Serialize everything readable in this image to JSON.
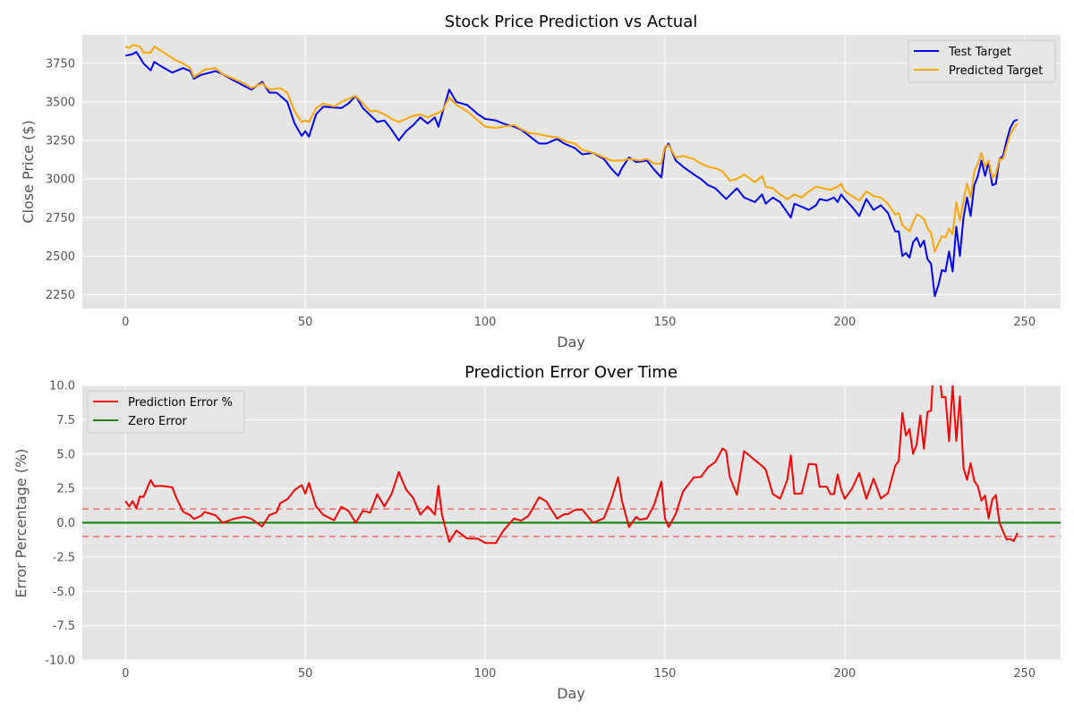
{
  "chart_data": [
    {
      "type": "line",
      "title": "Stock Price Prediction vs Actual",
      "xlabel": "Day",
      "ylabel": "Close Price ($)",
      "xlim": [
        -12,
        260
      ],
      "ylim": [
        2160,
        3935
      ],
      "xticks": [
        0,
        50,
        100,
        150,
        200,
        250
      ],
      "yticks": [
        2250,
        2500,
        2750,
        3000,
        3250,
        3500,
        3750
      ],
      "grid": true,
      "legend": "top-right",
      "anchors": {
        "Test Target": [
          [
            0,
            3800
          ],
          [
            2,
            3810
          ],
          [
            3,
            3825
          ],
          [
            5,
            3750
          ],
          [
            7,
            3705
          ],
          [
            8,
            3760
          ],
          [
            10,
            3730
          ],
          [
            13,
            3690
          ],
          [
            16,
            3720
          ],
          [
            18,
            3700
          ],
          [
            19,
            3650
          ],
          [
            21,
            3675
          ],
          [
            25,
            3700
          ],
          [
            27,
            3680
          ],
          [
            30,
            3640
          ],
          [
            35,
            3580
          ],
          [
            38,
            3630
          ],
          [
            40,
            3560
          ],
          [
            42,
            3560
          ],
          [
            45,
            3500
          ],
          [
            47,
            3360
          ],
          [
            49,
            3280
          ],
          [
            50,
            3310
          ],
          [
            51,
            3275
          ],
          [
            53,
            3420
          ],
          [
            55,
            3470
          ],
          [
            60,
            3460
          ],
          [
            62,
            3490
          ],
          [
            64,
            3540
          ],
          [
            66,
            3460
          ],
          [
            70,
            3370
          ],
          [
            72,
            3380
          ],
          [
            74,
            3320
          ],
          [
            76,
            3250
          ],
          [
            78,
            3310
          ],
          [
            80,
            3350
          ],
          [
            82,
            3400
          ],
          [
            84,
            3360
          ],
          [
            86,
            3400
          ],
          [
            87,
            3340
          ],
          [
            88,
            3420
          ],
          [
            90,
            3580
          ],
          [
            92,
            3500
          ],
          [
            95,
            3480
          ],
          [
            98,
            3420
          ],
          [
            100,
            3390
          ],
          [
            103,
            3380
          ],
          [
            105,
            3360
          ],
          [
            108,
            3340
          ],
          [
            110,
            3320
          ],
          [
            115,
            3230
          ],
          [
            117,
            3230
          ],
          [
            120,
            3260
          ],
          [
            122,
            3230
          ],
          [
            125,
            3200
          ],
          [
            127,
            3160
          ],
          [
            130,
            3170
          ],
          [
            133,
            3130
          ],
          [
            135,
            3070
          ],
          [
            137,
            3020
          ],
          [
            138,
            3070
          ],
          [
            140,
            3140
          ],
          [
            142,
            3110
          ],
          [
            145,
            3120
          ],
          [
            147,
            3060
          ],
          [
            149,
            3010
          ],
          [
            150,
            3200
          ],
          [
            151,
            3230
          ],
          [
            153,
            3120
          ],
          [
            155,
            3080
          ],
          [
            158,
            3030
          ],
          [
            160,
            3000
          ],
          [
            162,
            2960
          ],
          [
            164,
            2940
          ],
          [
            167,
            2870
          ],
          [
            170,
            2940
          ],
          [
            172,
            2880
          ],
          [
            175,
            2850
          ],
          [
            177,
            2900
          ],
          [
            178,
            2840
          ],
          [
            180,
            2880
          ],
          [
            182,
            2850
          ],
          [
            185,
            2750
          ],
          [
            186,
            2840
          ],
          [
            188,
            2820
          ],
          [
            190,
            2800
          ],
          [
            192,
            2830
          ],
          [
            193,
            2870
          ],
          [
            195,
            2860
          ],
          [
            197,
            2880
          ],
          [
            198,
            2850
          ],
          [
            199,
            2900
          ],
          [
            200,
            2870
          ],
          [
            202,
            2820
          ],
          [
            204,
            2760
          ],
          [
            206,
            2870
          ],
          [
            208,
            2800
          ],
          [
            210,
            2830
          ],
          [
            212,
            2780
          ],
          [
            214,
            2660
          ],
          [
            215,
            2660
          ],
          [
            216,
            2500
          ],
          [
            217,
            2520
          ],
          [
            218,
            2490
          ],
          [
            219,
            2590
          ],
          [
            220,
            2620
          ],
          [
            221,
            2560
          ],
          [
            222,
            2600
          ],
          [
            223,
            2480
          ],
          [
            224,
            2450
          ],
          [
            225,
            2240
          ],
          [
            226,
            2310
          ],
          [
            227,
            2410
          ],
          [
            228,
            2400
          ],
          [
            229,
            2530
          ],
          [
            230,
            2400
          ],
          [
            231,
            2690
          ],
          [
            232,
            2500
          ],
          [
            233,
            2750
          ],
          [
            234,
            2880
          ],
          [
            235,
            2760
          ],
          [
            236,
            2960
          ],
          [
            237,
            3020
          ],
          [
            238,
            3120
          ],
          [
            239,
            3020
          ],
          [
            240,
            3110
          ],
          [
            241,
            2960
          ],
          [
            242,
            2970
          ],
          [
            243,
            3130
          ],
          [
            244,
            3150
          ],
          [
            245,
            3250
          ],
          [
            246,
            3330
          ],
          [
            247,
            3375
          ],
          [
            248,
            3385
          ]
        ],
        "Predicted Target": [
          [
            0,
            3860
          ],
          [
            1,
            3850
          ],
          [
            2,
            3870
          ],
          [
            4,
            3860
          ],
          [
            5,
            3820
          ],
          [
            7,
            3820
          ],
          [
            8,
            3860
          ],
          [
            10,
            3830
          ],
          [
            12,
            3800
          ],
          [
            14,
            3770
          ],
          [
            16,
            3750
          ],
          [
            18,
            3720
          ],
          [
            19,
            3660
          ],
          [
            22,
            3710
          ],
          [
            25,
            3720
          ],
          [
            27,
            3680
          ],
          [
            30,
            3650
          ],
          [
            33,
            3620
          ],
          [
            35,
            3590
          ],
          [
            38,
            3620
          ],
          [
            40,
            3580
          ],
          [
            43,
            3590
          ],
          [
            45,
            3560
          ],
          [
            47,
            3440
          ],
          [
            49,
            3370
          ],
          [
            50,
            3380
          ],
          [
            51,
            3370
          ],
          [
            53,
            3460
          ],
          [
            55,
            3490
          ],
          [
            58,
            3470
          ],
          [
            60,
            3500
          ],
          [
            64,
            3540
          ],
          [
            66,
            3490
          ],
          [
            68,
            3440
          ],
          [
            70,
            3440
          ],
          [
            72,
            3420
          ],
          [
            74,
            3390
          ],
          [
            76,
            3370
          ],
          [
            78,
            3390
          ],
          [
            80,
            3410
          ],
          [
            82,
            3420
          ],
          [
            84,
            3400
          ],
          [
            86,
            3420
          ],
          [
            88,
            3440
          ],
          [
            90,
            3530
          ],
          [
            92,
            3480
          ],
          [
            95,
            3440
          ],
          [
            98,
            3380
          ],
          [
            100,
            3340
          ],
          [
            103,
            3330
          ],
          [
            105,
            3340
          ],
          [
            108,
            3350
          ],
          [
            112,
            3300
          ],
          [
            115,
            3290
          ],
          [
            117,
            3280
          ],
          [
            120,
            3270
          ],
          [
            123,
            3240
          ],
          [
            125,
            3230
          ],
          [
            127,
            3190
          ],
          [
            130,
            3170
          ],
          [
            133,
            3140
          ],
          [
            135,
            3120
          ],
          [
            138,
            3120
          ],
          [
            140,
            3130
          ],
          [
            143,
            3120
          ],
          [
            145,
            3130
          ],
          [
            147,
            3100
          ],
          [
            149,
            3100
          ],
          [
            150,
            3210
          ],
          [
            151,
            3220
          ],
          [
            153,
            3140
          ],
          [
            155,
            3150
          ],
          [
            158,
            3130
          ],
          [
            160,
            3100
          ],
          [
            162,
            3080
          ],
          [
            164,
            3070
          ],
          [
            166,
            3050
          ],
          [
            168,
            2990
          ],
          [
            170,
            3000
          ],
          [
            172,
            3030
          ],
          [
            175,
            2980
          ],
          [
            177,
            3020
          ],
          [
            178,
            2950
          ],
          [
            180,
            2940
          ],
          [
            182,
            2900
          ],
          [
            184,
            2870
          ],
          [
            186,
            2900
          ],
          [
            188,
            2880
          ],
          [
            190,
            2920
          ],
          [
            192,
            2950
          ],
          [
            194,
            2940
          ],
          [
            196,
            2930
          ],
          [
            198,
            2950
          ],
          [
            199,
            2970
          ],
          [
            200,
            2920
          ],
          [
            202,
            2890
          ],
          [
            204,
            2860
          ],
          [
            206,
            2920
          ],
          [
            208,
            2890
          ],
          [
            210,
            2880
          ],
          [
            212,
            2840
          ],
          [
            214,
            2770
          ],
          [
            215,
            2780
          ],
          [
            216,
            2700
          ],
          [
            217,
            2680
          ],
          [
            218,
            2660
          ],
          [
            219,
            2720
          ],
          [
            220,
            2770
          ],
          [
            221,
            2760
          ],
          [
            222,
            2740
          ],
          [
            223,
            2680
          ],
          [
            224,
            2650
          ],
          [
            225,
            2530
          ],
          [
            226,
            2580
          ],
          [
            227,
            2630
          ],
          [
            228,
            2620
          ],
          [
            229,
            2680
          ],
          [
            230,
            2640
          ],
          [
            231,
            2850
          ],
          [
            232,
            2730
          ],
          [
            233,
            2860
          ],
          [
            234,
            2970
          ],
          [
            235,
            2880
          ],
          [
            236,
            3050
          ],
          [
            237,
            3100
          ],
          [
            238,
            3170
          ],
          [
            239,
            3080
          ],
          [
            240,
            3120
          ],
          [
            241,
            3010
          ],
          [
            242,
            3030
          ],
          [
            243,
            3130
          ],
          [
            244,
            3130
          ],
          [
            245,
            3210
          ],
          [
            246,
            3290
          ],
          [
            247,
            3330
          ],
          [
            248,
            3360
          ]
        ]
      },
      "series": [
        {
          "name": "Test Target",
          "color": "#0000ff"
        },
        {
          "name": "Predicted Target",
          "color": "#ffa500"
        }
      ]
    },
    {
      "type": "line",
      "title": "Prediction Error Over Time",
      "xlabel": "Day",
      "ylabel": "Error Percentage (%)",
      "xlim": [
        -12,
        260
      ],
      "ylim": [
        -10,
        10
      ],
      "xticks": [
        0,
        50,
        100,
        150,
        200,
        250
      ],
      "yticks": [
        -10.0,
        -7.5,
        -5.0,
        -2.5,
        0.0,
        2.5,
        5.0,
        7.5,
        10.0
      ],
      "grid": true,
      "legend": "top-left",
      "series": [
        {
          "name": "Prediction Error %",
          "color": "#ff0000"
        },
        {
          "name": "Zero Error",
          "color": "#008000",
          "values": [
            0
          ]
        }
      ],
      "reference_lines": [
        {
          "y": 1.0,
          "color": "#ff0000",
          "style": "dashed"
        },
        {
          "y": -1.0,
          "color": "#ff0000",
          "style": "dashed"
        }
      ]
    }
  ]
}
